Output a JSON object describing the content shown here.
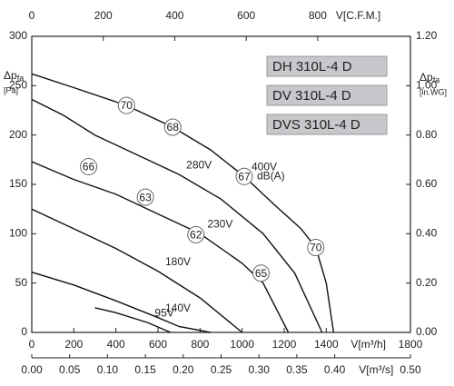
{
  "chart_data": {
    "type": "line",
    "x_label": "V[m³/h]",
    "xlim": [
      0,
      1800
    ],
    "xticks": [
      0,
      200,
      400,
      600,
      800,
      1000,
      1200,
      1400,
      1800
    ],
    "x2_label": "V[m³/s]",
    "x2lim": [
      0,
      0.5
    ],
    "x2ticks": [
      {
        "value": 0,
        "label": "0.00"
      },
      {
        "value": 0.05,
        "label": "0.05"
      },
      {
        "value": 0.1,
        "label": "0.10"
      },
      {
        "value": 0.15,
        "label": "0.15"
      },
      {
        "value": 0.2,
        "label": "0.20"
      },
      {
        "value": 0.25,
        "label": "0.25"
      },
      {
        "value": 0.3,
        "label": "0.30"
      },
      {
        "value": 0.35,
        "label": "0.35"
      },
      {
        "value": 0.4,
        "label": "0.40"
      },
      {
        "value": 0.5,
        "label": "0.50"
      }
    ],
    "x3_label": "V[C.F.M.]",
    "x3lim": [
      0,
      1059.4
    ],
    "x3ticks": [
      0,
      200,
      400,
      600,
      800
    ],
    "y_label": "Δp",
    "y_label_sub": "fa",
    "y_unit": "[Pa]",
    "ylim": [
      0,
      300
    ],
    "yticks": [
      0,
      50,
      100,
      150,
      200,
      250,
      300
    ],
    "y2_label": "Δp",
    "y2_label_sub": "fa",
    "y2_unit": "[in.WG]",
    "y2lim": [
      0,
      1.2
    ],
    "y2ticks": [
      {
        "value": 0,
        "label": "0.00"
      },
      {
        "value": 0.2,
        "label": "0.20"
      },
      {
        "value": 0.4,
        "label": "0.40"
      },
      {
        "value": 0.6,
        "label": "0.60"
      },
      {
        "value": 0.8,
        "label": "0.80"
      },
      {
        "value": 1.0,
        "label": "1.00"
      },
      {
        "value": 1.2,
        "label": "1.20"
      }
    ],
    "models": [
      "DH 310L-4 D",
      "DV 310L-4 D",
      "DVS 310L-4 D"
    ],
    "series": [
      {
        "name": "400V",
        "color": "#111111",
        "x": [
          0,
          200,
          450,
          670,
          850,
          1010,
          1150,
          1280,
          1350,
          1400,
          1435
        ],
        "values": [
          262,
          248,
          230,
          208,
          185,
          158,
          130,
          105,
          86,
          50,
          0
        ]
      },
      {
        "name": "280V",
        "color": "#111111",
        "x": [
          0,
          150,
          300,
          500,
          700,
          900,
          1100,
          1250,
          1380
        ],
        "values": [
          236,
          220,
          200,
          180,
          160,
          135,
          100,
          60,
          0
        ]
      },
      {
        "name": "230V",
        "color": "#111111",
        "x": [
          0,
          200,
          400,
          600,
          800,
          1000,
          1100,
          1220
        ],
        "values": [
          173,
          155,
          140,
          120,
          100,
          70,
          50,
          0
        ]
      },
      {
        "name": "180V",
        "color": "#111111",
        "x": [
          0,
          200,
          400,
          600,
          800,
          1000
        ],
        "values": [
          125,
          105,
          85,
          62,
          35,
          0
        ]
      },
      {
        "name": "140V",
        "color": "#111111",
        "x": [
          0,
          200,
          400,
          600,
          700,
          850
        ],
        "values": [
          61,
          48,
          32,
          15,
          6,
          0
        ]
      },
      {
        "name": "95V",
        "color": "#111111",
        "x": [
          300,
          400,
          550,
          660
        ],
        "values": [
          25,
          20,
          10,
          0
        ]
      }
    ],
    "annotations": [
      {
        "text": "70",
        "x": 450,
        "y": 230
      },
      {
        "text": "68",
        "x": 670,
        "y": 208
      },
      {
        "text": "67",
        "x": 1010,
        "y": 158
      },
      {
        "text": "70",
        "x": 1350,
        "y": 86
      },
      {
        "text": "66",
        "x": 270,
        "y": 168
      },
      {
        "text": "63",
        "x": 540,
        "y": 137
      },
      {
        "text": "62",
        "x": 780,
        "y": 99
      },
      {
        "text": "65",
        "x": 1090,
        "y": 60
      }
    ],
    "noise_unit": "dB(A)"
  }
}
